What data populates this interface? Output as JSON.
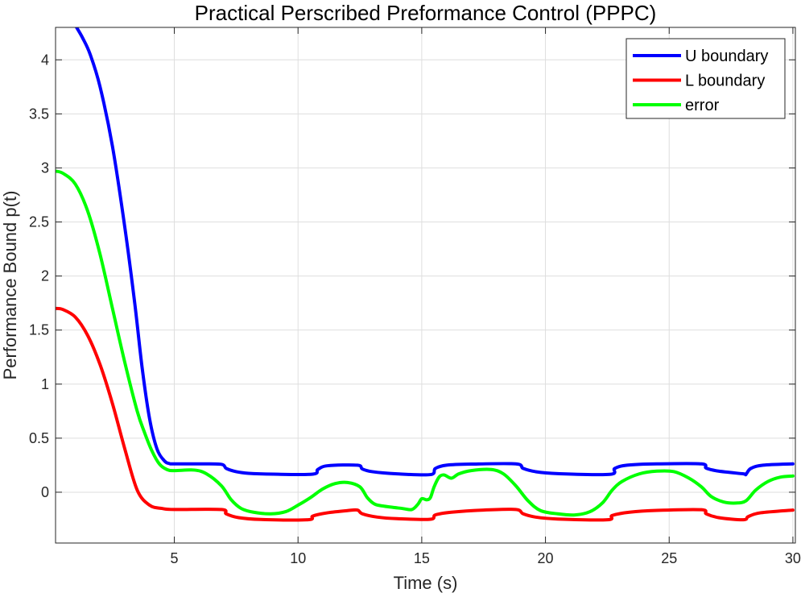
{
  "chart_data": {
    "type": "line",
    "title": "Practical Perscribed Preformance Control (PPPC)",
    "xlabel": "Time (s)",
    "ylabel": "Performance Bound p(t)",
    "xlim": [
      0.2,
      30.1
    ],
    "ylim": [
      -0.47,
      4.3
    ],
    "grid": true,
    "legend_position": "top-right",
    "x_ticks": [
      5,
      10,
      15,
      20,
      25,
      30
    ],
    "x_tick_labels": [
      "5",
      "10",
      "15",
      "20",
      "25",
      "30"
    ],
    "y_ticks": [
      0,
      0.5,
      1,
      1.5,
      2,
      2.5,
      3,
      3.5,
      4
    ],
    "y_tick_labels": [
      "0",
      "0.5",
      "1",
      "1.5",
      "2",
      "2.5",
      "3",
      "3.5",
      "4"
    ],
    "series": [
      {
        "name": "U boundary",
        "color": "#0000ff",
        "points": [
          [
            1.05,
            4.3
          ],
          [
            1.3,
            4.2
          ],
          [
            1.6,
            4.05
          ],
          [
            2.0,
            3.75
          ],
          [
            2.5,
            3.2
          ],
          [
            3.0,
            2.45
          ],
          [
            3.4,
            1.75
          ],
          [
            3.7,
            1.15
          ],
          [
            4.0,
            0.68
          ],
          [
            4.3,
            0.4
          ],
          [
            4.6,
            0.29
          ],
          [
            4.8,
            0.265
          ],
          [
            5.0,
            0.262
          ],
          [
            6.0,
            0.262
          ],
          [
            6.9,
            0.258
          ],
          [
            7.1,
            0.22
          ],
          [
            7.5,
            0.19
          ],
          [
            8.0,
            0.175
          ],
          [
            9.0,
            0.167
          ],
          [
            10.6,
            0.167
          ],
          [
            10.8,
            0.21
          ],
          [
            11.2,
            0.245
          ],
          [
            12.4,
            0.25
          ],
          [
            12.6,
            0.215
          ],
          [
            13.0,
            0.19
          ],
          [
            14.0,
            0.17
          ],
          [
            15.35,
            0.163
          ],
          [
            15.55,
            0.22
          ],
          [
            16.0,
            0.25
          ],
          [
            17.0,
            0.26
          ],
          [
            18.8,
            0.262
          ],
          [
            19.1,
            0.22
          ],
          [
            19.6,
            0.19
          ],
          [
            20.5,
            0.172
          ],
          [
            22.6,
            0.165
          ],
          [
            22.8,
            0.22
          ],
          [
            23.3,
            0.25
          ],
          [
            24.5,
            0.262
          ],
          [
            26.3,
            0.262
          ],
          [
            26.5,
            0.222
          ],
          [
            27.0,
            0.195
          ],
          [
            28.0,
            0.17
          ],
          [
            28.1,
            0.165
          ],
          [
            28.3,
            0.22
          ],
          [
            28.8,
            0.25
          ],
          [
            30.0,
            0.262
          ]
        ]
      },
      {
        "name": "L boundary",
        "color": "#ff0000",
        "points": [
          [
            0.2,
            1.7
          ],
          [
            0.5,
            1.69
          ],
          [
            1.0,
            1.62
          ],
          [
            1.5,
            1.45
          ],
          [
            2.0,
            1.18
          ],
          [
            2.5,
            0.82
          ],
          [
            3.0,
            0.4
          ],
          [
            3.5,
            0.02
          ],
          [
            4.0,
            -0.12
          ],
          [
            4.5,
            -0.15
          ],
          [
            5.0,
            -0.16
          ],
          [
            6.9,
            -0.16
          ],
          [
            7.1,
            -0.2
          ],
          [
            7.6,
            -0.235
          ],
          [
            8.5,
            -0.252
          ],
          [
            10.4,
            -0.255
          ],
          [
            10.6,
            -0.22
          ],
          [
            11.2,
            -0.19
          ],
          [
            12.0,
            -0.17
          ],
          [
            12.4,
            -0.165
          ],
          [
            12.6,
            -0.2
          ],
          [
            13.2,
            -0.23
          ],
          [
            14.0,
            -0.245
          ],
          [
            15.35,
            -0.25
          ],
          [
            15.55,
            -0.21
          ],
          [
            16.2,
            -0.185
          ],
          [
            17.5,
            -0.165
          ],
          [
            18.8,
            -0.16
          ],
          [
            19.1,
            -0.2
          ],
          [
            19.6,
            -0.23
          ],
          [
            20.5,
            -0.248
          ],
          [
            22.5,
            -0.255
          ],
          [
            22.7,
            -0.215
          ],
          [
            23.4,
            -0.185
          ],
          [
            24.5,
            -0.168
          ],
          [
            26.3,
            -0.162
          ],
          [
            26.5,
            -0.2
          ],
          [
            27.0,
            -0.235
          ],
          [
            28.0,
            -0.255
          ],
          [
            28.2,
            -0.225
          ],
          [
            28.7,
            -0.19
          ],
          [
            30.0,
            -0.165
          ]
        ]
      },
      {
        "name": "error",
        "color": "#00ff00",
        "points": [
          [
            0.2,
            2.97
          ],
          [
            0.5,
            2.95
          ],
          [
            1.0,
            2.85
          ],
          [
            1.5,
            2.6
          ],
          [
            2.0,
            2.2
          ],
          [
            2.5,
            1.7
          ],
          [
            3.0,
            1.2
          ],
          [
            3.5,
            0.75
          ],
          [
            3.8,
            0.55
          ],
          [
            4.1,
            0.38
          ],
          [
            4.4,
            0.26
          ],
          [
            4.7,
            0.21
          ],
          [
            5.0,
            0.2
          ],
          [
            5.8,
            0.205
          ],
          [
            6.3,
            0.17
          ],
          [
            6.9,
            0.06
          ],
          [
            7.3,
            -0.07
          ],
          [
            7.7,
            -0.15
          ],
          [
            8.2,
            -0.185
          ],
          [
            8.9,
            -0.2
          ],
          [
            9.5,
            -0.18
          ],
          [
            10.0,
            -0.12
          ],
          [
            10.5,
            -0.05
          ],
          [
            11.0,
            0.03
          ],
          [
            11.5,
            0.08
          ],
          [
            12.0,
            0.09
          ],
          [
            12.5,
            0.05
          ],
          [
            12.8,
            -0.05
          ],
          [
            13.1,
            -0.11
          ],
          [
            13.5,
            -0.13
          ],
          [
            14.2,
            -0.15
          ],
          [
            14.6,
            -0.16
          ],
          [
            14.85,
            -0.11
          ],
          [
            15.0,
            -0.06
          ],
          [
            15.2,
            -0.07
          ],
          [
            15.35,
            -0.05
          ],
          [
            15.5,
            0.05
          ],
          [
            15.7,
            0.14
          ],
          [
            15.9,
            0.16
          ],
          [
            16.2,
            0.13
          ],
          [
            16.5,
            0.17
          ],
          [
            17.0,
            0.2
          ],
          [
            17.8,
            0.21
          ],
          [
            18.3,
            0.17
          ],
          [
            18.8,
            0.06
          ],
          [
            19.3,
            -0.08
          ],
          [
            19.8,
            -0.17
          ],
          [
            20.5,
            -0.2
          ],
          [
            21.2,
            -0.21
          ],
          [
            21.8,
            -0.18
          ],
          [
            22.3,
            -0.1
          ],
          [
            22.7,
            0.02
          ],
          [
            23.1,
            0.1
          ],
          [
            23.8,
            0.17
          ],
          [
            24.5,
            0.195
          ],
          [
            25.2,
            0.19
          ],
          [
            25.8,
            0.13
          ],
          [
            26.3,
            0.05
          ],
          [
            26.7,
            -0.04
          ],
          [
            27.2,
            -0.09
          ],
          [
            27.7,
            -0.1
          ],
          [
            28.1,
            -0.08
          ],
          [
            28.5,
            0.02
          ],
          [
            29.0,
            0.1
          ],
          [
            29.5,
            0.14
          ],
          [
            30.0,
            0.15
          ]
        ]
      }
    ]
  }
}
